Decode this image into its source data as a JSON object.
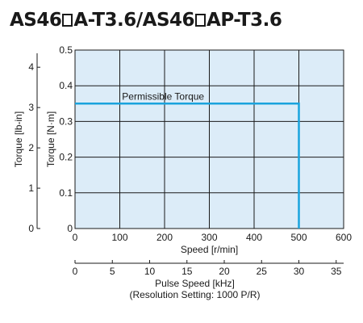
{
  "title": {
    "part1": "AS46",
    "part2": "A-T3.6/AS46",
    "part3": "AP-T3.6"
  },
  "chart_data": {
    "type": "line",
    "background": "#dcecf8",
    "line_color": "#1aa3dd",
    "grid": true,
    "series": [
      {
        "name": "Permissible Torque",
        "x": [
          0,
          500,
          500
        ],
        "y": [
          0.35,
          0.35,
          0
        ]
      }
    ],
    "annotation": "Permissible Torque",
    "x_axis": {
      "label": "Speed [r/min]",
      "range": [
        0,
        600
      ],
      "ticks": [
        "0",
        "100",
        "200",
        "300",
        "400",
        "500",
        "600"
      ]
    },
    "y_axis": {
      "label": "Torque [N·m]",
      "range": [
        0,
        0.5
      ],
      "ticks": [
        "0",
        "0.1",
        "0.2",
        "0.3",
        "0.4",
        "0.5"
      ]
    },
    "y2_axis": {
      "label": "Torque [lb-in]",
      "range": [
        0,
        4.425
      ],
      "ticks": [
        "0",
        "1",
        "2",
        "3",
        "4"
      ]
    },
    "x2_axis": {
      "label_line1": "Pulse Speed [kHz]",
      "label_line2": "(Resolution Setting: 1000 P/R)",
      "range": [
        0,
        36
      ],
      "ticks": [
        "0",
        "5",
        "10",
        "15",
        "20",
        "25",
        "30",
        "35"
      ]
    }
  }
}
